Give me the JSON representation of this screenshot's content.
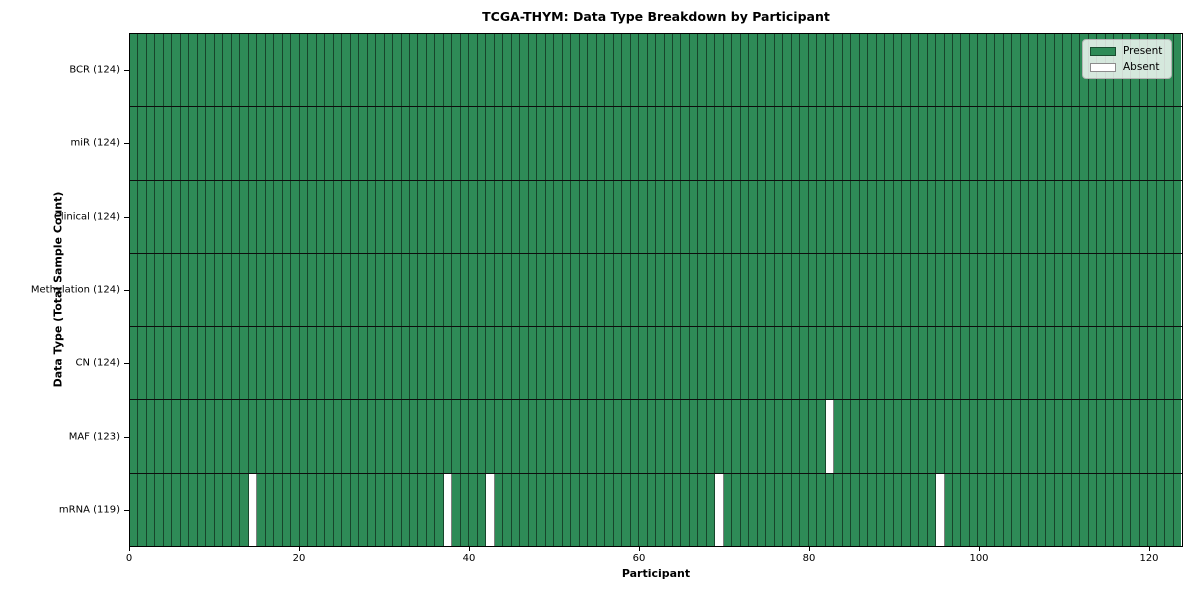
{
  "figure": {
    "kind": "matplotlib-heatmap-screenshot"
  },
  "chart_data": {
    "type": "heatmap",
    "title": "TCGA-THYM: Data Type Breakdown by Participant",
    "xlabel": "Participant",
    "ylabel": "Data Type (Total Sample Count)",
    "n_participants": 124,
    "xlim": [
      0,
      124
    ],
    "xticks": [
      0,
      20,
      40,
      60,
      80,
      100,
      120
    ],
    "rows": [
      {
        "label": "BCR (124)",
        "data_type": "BCR",
        "present_count": 124,
        "absent_indices": []
      },
      {
        "label": "miR (124)",
        "data_type": "miR",
        "present_count": 124,
        "absent_indices": []
      },
      {
        "label": "Clinical (124)",
        "data_type": "Clinical",
        "present_count": 124,
        "absent_indices": []
      },
      {
        "label": "Methylation (124)",
        "data_type": "Methylation",
        "present_count": 124,
        "absent_indices": []
      },
      {
        "label": "CN (124)",
        "data_type": "CN",
        "present_count": 124,
        "absent_indices": []
      },
      {
        "label": "MAF (123)",
        "data_type": "MAF",
        "present_count": 123,
        "absent_indices": [
          82
        ]
      },
      {
        "label": "mRNA (119)",
        "data_type": "mRNA",
        "present_count": 119,
        "absent_indices": [
          14,
          37,
          42,
          69,
          95
        ]
      }
    ],
    "legend": [
      {
        "label": "Present",
        "color": "#2e8b57"
      },
      {
        "label": "Absent",
        "color": "#ffffff"
      }
    ],
    "colors": {
      "present": "#2e8b57",
      "absent": "#ffffff",
      "cell_edge": "#17462c",
      "row_divider": "#0d0d0d",
      "spine": "#000000"
    },
    "legend_position": "upper right",
    "grid": "cell-edges"
  }
}
